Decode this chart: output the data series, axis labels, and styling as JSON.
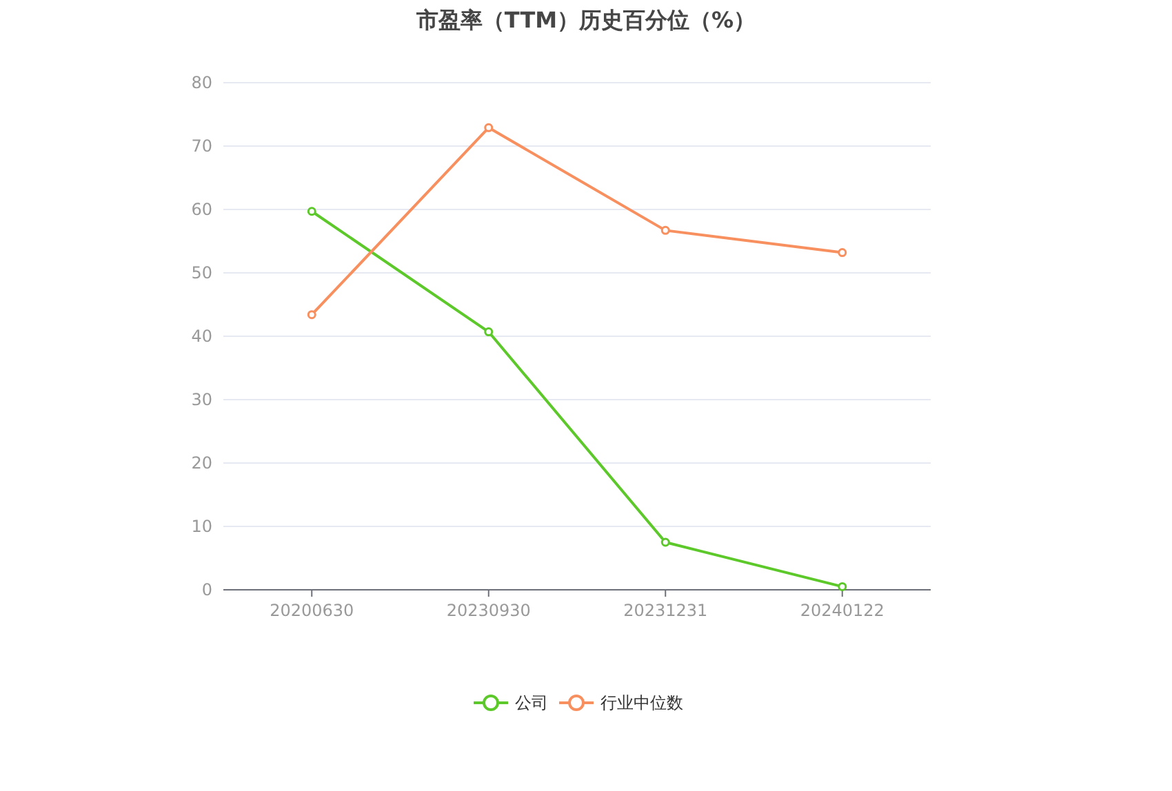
{
  "chart_data": {
    "type": "line",
    "title": "市盈率（TTM）历史百分位（%）",
    "categories": [
      "20200630",
      "20230930",
      "20231231",
      "20240122"
    ],
    "series": [
      {
        "name": "公司",
        "color": "#5cc82a",
        "values": [
          59.7,
          40.7,
          7.5,
          0.5
        ]
      },
      {
        "name": "行业中位数",
        "color": "#f88f5e",
        "values": [
          43.4,
          72.9,
          56.7,
          53.2
        ]
      }
    ],
    "ylim": [
      0,
      80
    ],
    "yticks": [
      0,
      10,
      20,
      30,
      40,
      50,
      60,
      70,
      80
    ],
    "grid": "y",
    "legend": "bottom",
    "marker": "circle"
  }
}
